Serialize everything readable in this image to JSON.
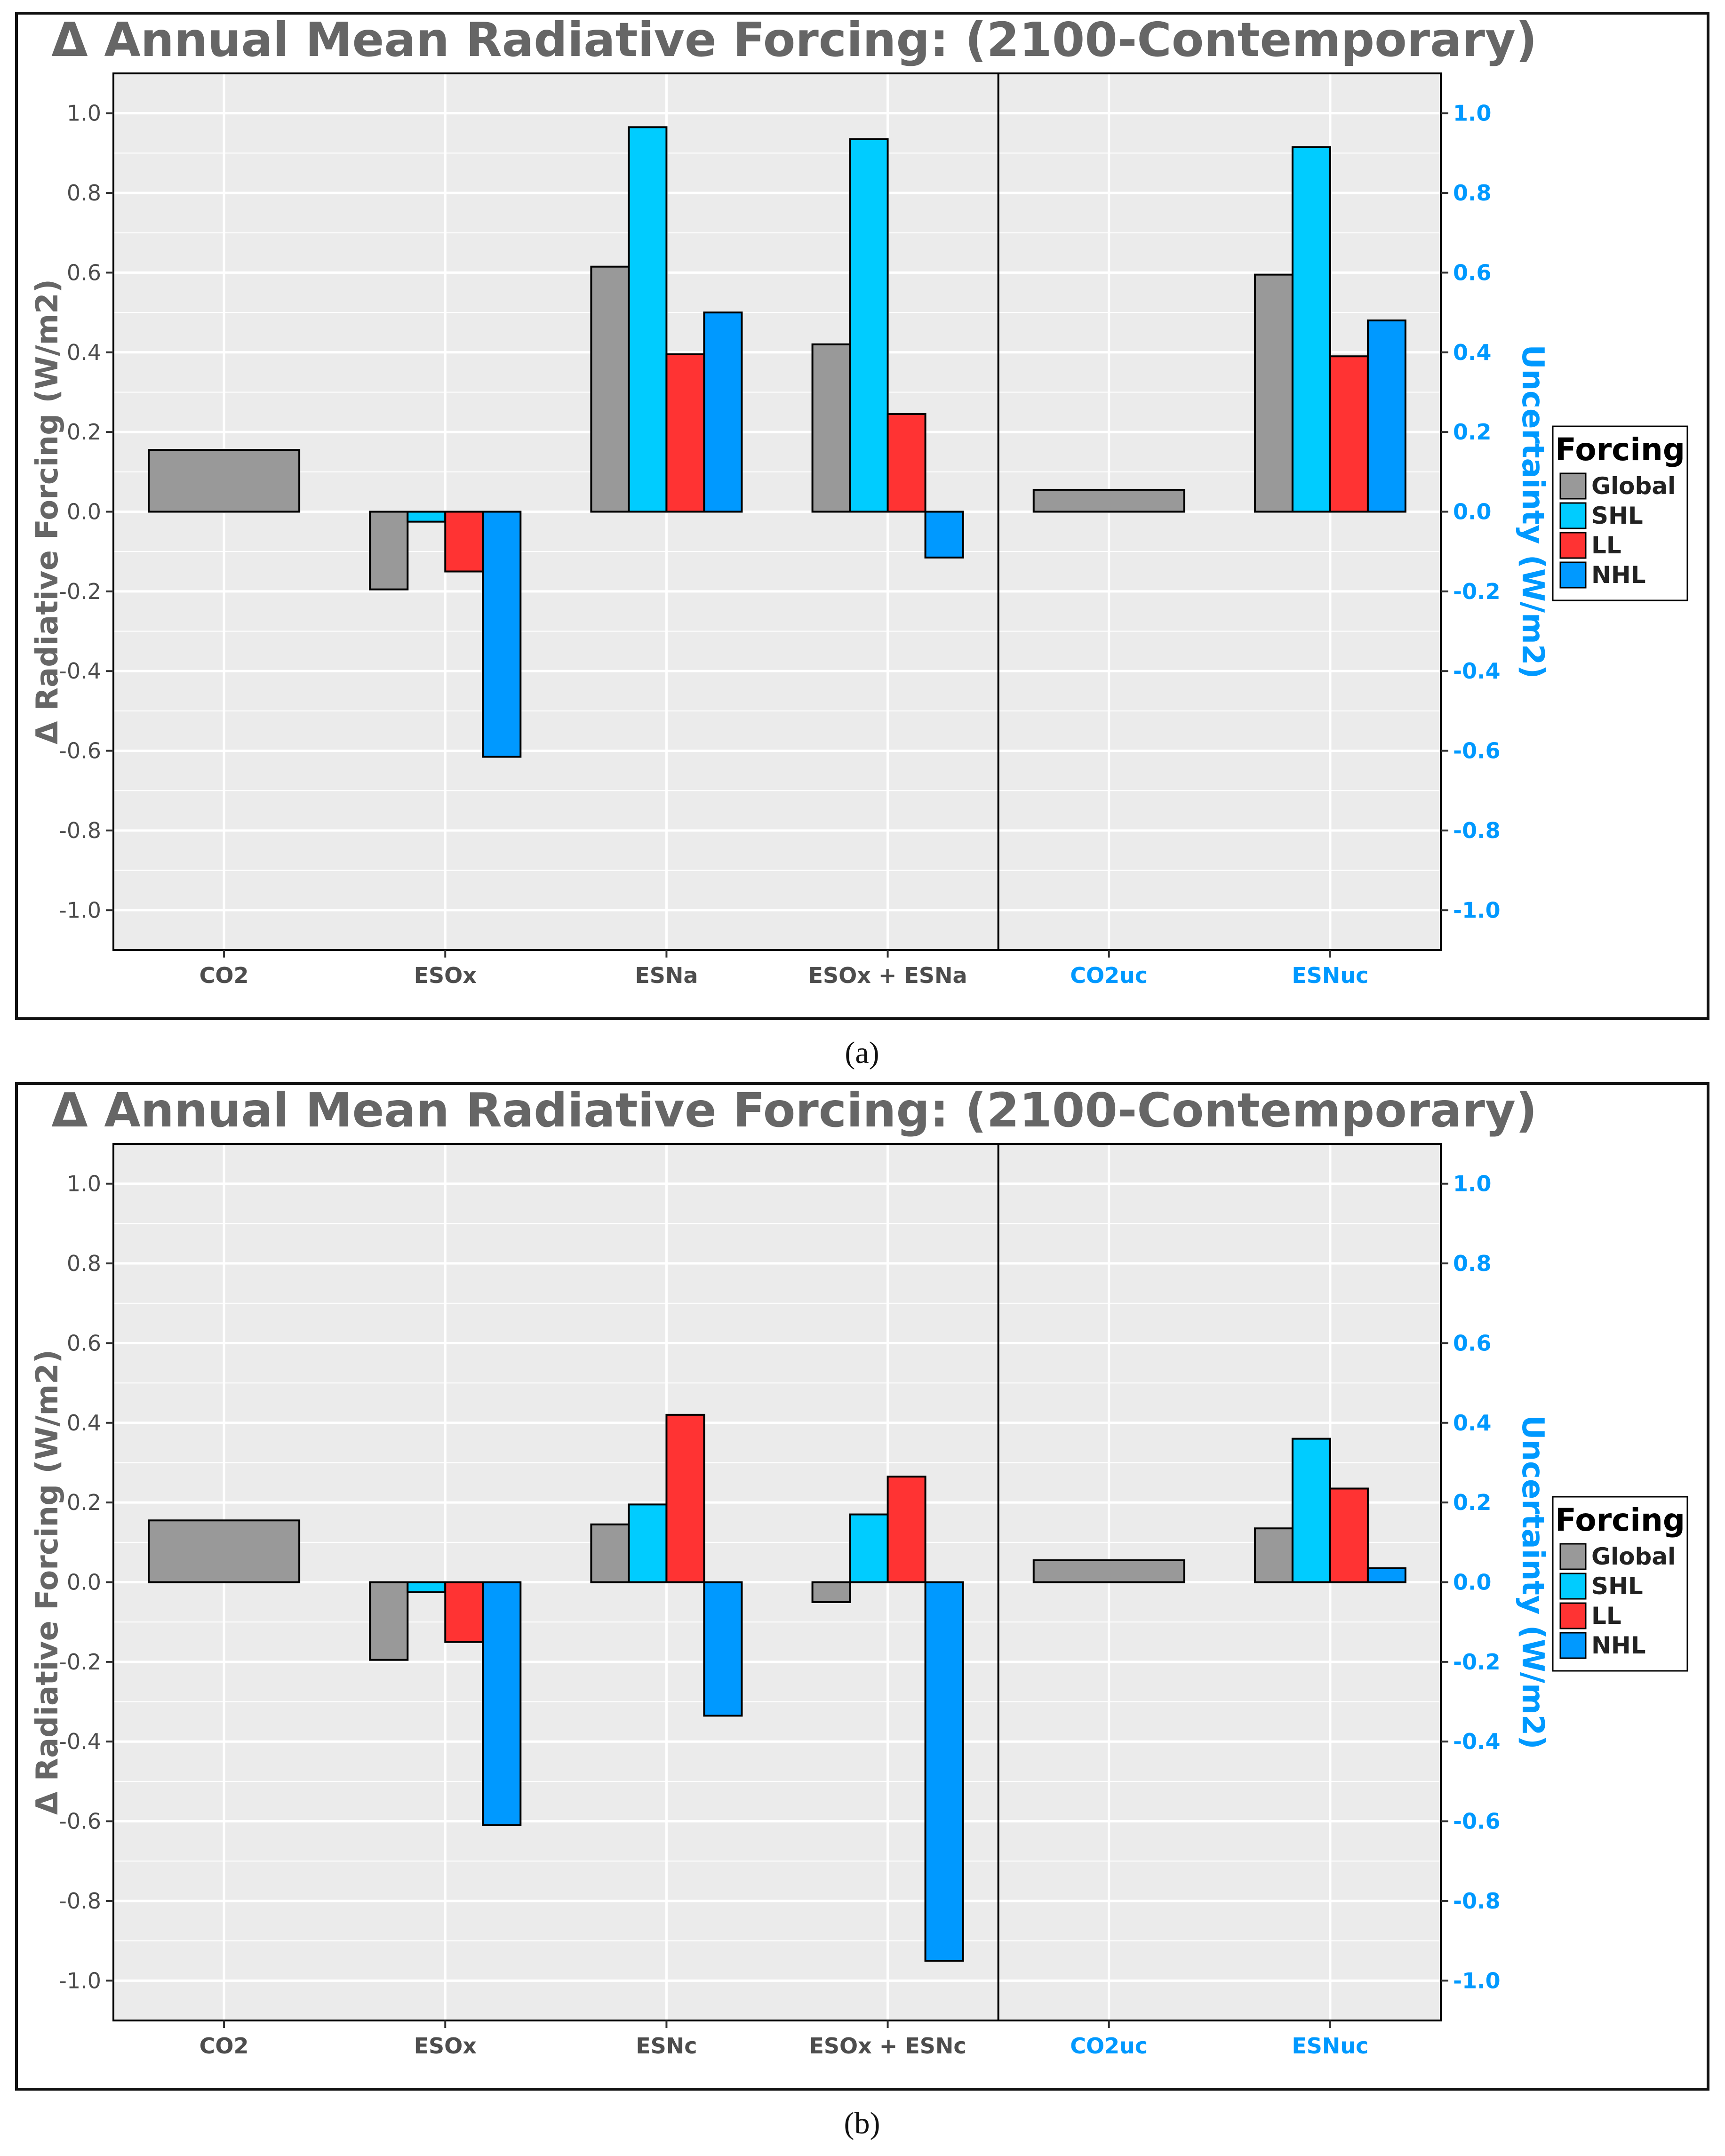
{
  "colors": {
    "Global": "#999999",
    "SHL": "#00CCFF",
    "LL": "#FF3333",
    "NHL": "#0099FF",
    "panel_bg": "#EBEBEB",
    "grid": "#FFFFFF",
    "uncertainty_axis": "#0099FF",
    "title": "#666666",
    "axis_text": "#4D4D4D"
  },
  "chart_data": [
    {
      "type": "bar",
      "panel_label": "(a)",
      "title": "Δ Annual Mean Radiative Forcing: (2100-Contemporary)",
      "ylabel": "Δ Radiative Forcing (W/m2)",
      "y2label": "Uncertainty (W/m2)",
      "ylim": [
        -1.1,
        1.1
      ],
      "yticks": [
        "1.0",
        "0.8",
        "0.6",
        "0.4",
        "0.2",
        "0.0",
        "-0.2",
        "-0.4",
        "-0.6",
        "-0.8",
        "-1.0"
      ],
      "categories": [
        "CO2",
        "ESOx",
        "ESNa",
        "ESOx + ESNa",
        "CO2uc",
        "ESNuc"
      ],
      "uncertainty_categories": [
        "CO2uc",
        "ESNuc"
      ],
      "legend": {
        "title": "Forcing",
        "entries": [
          "Global",
          "SHL",
          "LL",
          "NHL"
        ],
        "position": "right"
      },
      "series": [
        {
          "name": "Global",
          "values": [
            0.155,
            -0.195,
            0.615,
            0.42,
            0.055,
            0.595
          ]
        },
        {
          "name": "SHL",
          "values": [
            null,
            -0.025,
            0.965,
            0.935,
            null,
            0.915
          ]
        },
        {
          "name": "LL",
          "values": [
            null,
            -0.15,
            0.395,
            0.245,
            null,
            0.39
          ]
        },
        {
          "name": "NHL",
          "values": [
            null,
            -0.615,
            0.5,
            -0.115,
            null,
            0.48
          ]
        }
      ]
    },
    {
      "type": "bar",
      "panel_label": "(b)",
      "title": "Δ Annual Mean Radiative Forcing: (2100-Contemporary)",
      "ylabel": "Δ Radiative Forcing (W/m2)",
      "y2label": "Uncertainty (W/m2)",
      "ylim": [
        -1.1,
        1.1
      ],
      "yticks": [
        "1.0",
        "0.8",
        "0.6",
        "0.4",
        "0.2",
        "0.0",
        "-0.2",
        "-0.4",
        "-0.6",
        "-0.8",
        "-1.0"
      ],
      "categories": [
        "CO2",
        "ESOx",
        "ESNc",
        "ESOx + ESNc",
        "CO2uc",
        "ESNuc"
      ],
      "uncertainty_categories": [
        "CO2uc",
        "ESNuc"
      ],
      "legend": {
        "title": "Forcing",
        "entries": [
          "Global",
          "SHL",
          "LL",
          "NHL"
        ],
        "position": "right"
      },
      "series": [
        {
          "name": "Global",
          "values": [
            0.155,
            -0.195,
            0.145,
            -0.05,
            0.055,
            0.135
          ]
        },
        {
          "name": "SHL",
          "values": [
            null,
            -0.025,
            0.195,
            0.17,
            null,
            0.36
          ]
        },
        {
          "name": "LL",
          "values": [
            null,
            -0.15,
            0.42,
            0.265,
            null,
            0.235
          ]
        },
        {
          "name": "NHL",
          "values": [
            null,
            -0.61,
            -0.335,
            -0.95,
            null,
            0.035
          ]
        }
      ]
    }
  ]
}
